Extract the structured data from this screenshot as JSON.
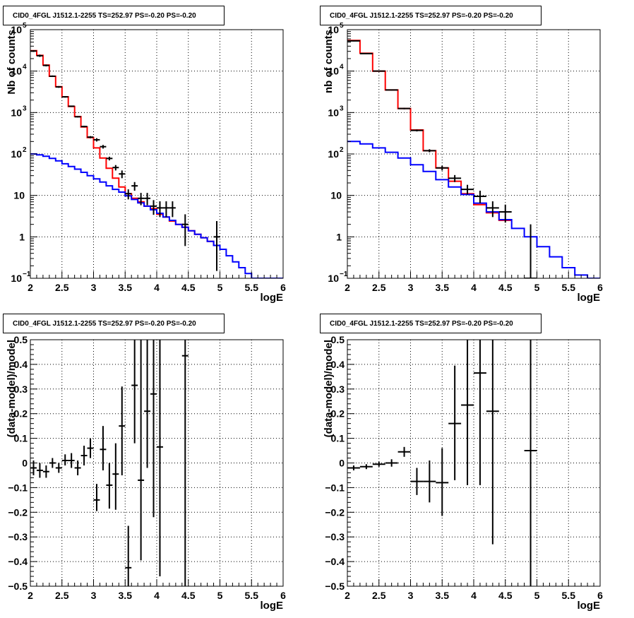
{
  "panels": [
    {
      "title": "CID0_4FGL J1512.1-2255 TS=252.97 PS=-0.20 PS=-0.20",
      "xlabel": "logE",
      "ylabel": "Nb of counts",
      "x_ticks": [
        "2",
        "2.5",
        "3",
        "3.5",
        "4",
        "4.5",
        "5",
        "5.5",
        "6"
      ],
      "y_ticks": [
        {
          "value": 0.1,
          "base": "10",
          "exp": "−1"
        },
        {
          "value": 1,
          "base": "1",
          "exp": ""
        },
        {
          "value": 10,
          "base": "10",
          "exp": ""
        },
        {
          "value": 100,
          "base": "10",
          "exp": "2"
        },
        {
          "value": 1000,
          "base": "10",
          "exp": "3"
        },
        {
          "value": 10000,
          "base": "10",
          "exp": "4"
        },
        {
          "value": 100000,
          "base": "10",
          "exp": "5"
        }
      ]
    },
    {
      "title": "CID0_4FGL J1512.1-2255 TS=252.97 PS=-0.20 PS=-0.20",
      "xlabel": "logE",
      "ylabel": "nb of counts",
      "x_ticks": [
        "2",
        "2.5",
        "3",
        "3.5",
        "4",
        "4.5",
        "5",
        "5.5",
        "6"
      ],
      "y_ticks": [
        {
          "value": 0.1,
          "base": "10",
          "exp": "−1"
        },
        {
          "value": 1,
          "base": "1",
          "exp": ""
        },
        {
          "value": 10,
          "base": "10",
          "exp": ""
        },
        {
          "value": 100,
          "base": "10",
          "exp": "2"
        },
        {
          "value": 1000,
          "base": "10",
          "exp": "3"
        },
        {
          "value": 10000,
          "base": "10",
          "exp": "4"
        },
        {
          "value": 100000,
          "base": "10",
          "exp": "5"
        }
      ]
    },
    {
      "title": "CID0_4FGL J1512.1-2255 TS=252.97 PS=-0.20 PS=-0.20",
      "xlabel": "logE",
      "ylabel": "(data-model)/model",
      "x_ticks": [
        "2",
        "2.5",
        "3",
        "3.5",
        "4",
        "4.5",
        "5",
        "5.5",
        "6"
      ],
      "y_ticks": [
        "−0.5",
        "−0.4",
        "−0.3",
        "−0.2",
        "−0.1",
        "0",
        "0.1",
        "0.2",
        "0.3",
        "0.4",
        "0.5"
      ]
    },
    {
      "title": "CID0_4FGL J1512.1-2255 TS=252.97 PS=-0.20 PS=-0.20",
      "xlabel": "logE",
      "ylabel": "(data-model)/model",
      "x_ticks": [
        "2",
        "2.5",
        "3",
        "3.5",
        "4",
        "4.5",
        "5",
        "5.5",
        "6"
      ],
      "y_ticks": [
        "−0.5",
        "−0.4",
        "−0.3",
        "−0.2",
        "−0.1",
        "0",
        "0.1",
        "0.2",
        "0.3",
        "0.4",
        "0.5"
      ]
    }
  ],
  "colors": {
    "model_total": "#ff0000",
    "model_background": "#0000ff",
    "data": "#000000",
    "grid": "#000000"
  },
  "chart_data": [
    {
      "type": "line",
      "title": "CID0_4FGL J1512.1-2255 TS=252.97 PS=-0.20 PS=-0.20",
      "xlabel": "logE",
      "ylabel": "Nb of counts",
      "xlim": [
        2,
        6
      ],
      "ylim": [
        0.1,
        100000
      ],
      "yscale": "log",
      "grid": true,
      "series": [
        {
          "kind": "step",
          "color": "red",
          "bin_edges": [
            2.0,
            2.1,
            2.2,
            2.3,
            2.4,
            2.5,
            2.6,
            2.7,
            2.8,
            2.9,
            3.0,
            3.1,
            3.2,
            3.3,
            3.4,
            3.5,
            3.6,
            3.7,
            3.8,
            3.9,
            4.0,
            4.1,
            4.2,
            4.3,
            4.4,
            4.5,
            4.6,
            4.7,
            4.8,
            4.9,
            5.0,
            5.1
          ],
          "values": [
            31000,
            24000,
            14000,
            7500,
            4200,
            2400,
            1400,
            800,
            450,
            250,
            140,
            80,
            45,
            26,
            16,
            11,
            8.5,
            7,
            5.5,
            4.8,
            3.5,
            3.0,
            2.4,
            2.0,
            1.7,
            1.4,
            1.15,
            0.95,
            0.78,
            0.62,
            0.5
          ]
        },
        {
          "kind": "step",
          "color": "blue",
          "bin_edges": [
            2.0,
            2.1,
            2.2,
            2.3,
            2.4,
            2.5,
            2.6,
            2.7,
            2.8,
            2.9,
            3.0,
            3.1,
            3.2,
            3.3,
            3.4,
            3.5,
            3.6,
            3.7,
            3.8,
            3.9,
            4.0,
            4.1,
            4.2,
            4.3,
            4.4,
            4.5,
            4.6,
            4.7,
            4.8,
            4.9,
            5.0,
            5.1,
            5.2,
            5.3,
            5.4,
            5.5,
            5.6,
            5.7,
            5.8,
            5.9,
            6.0
          ],
          "values": [
            100,
            95,
            88,
            78,
            68,
            58,
            50,
            43,
            36,
            30,
            25,
            21,
            17,
            14,
            12,
            9.8,
            8,
            6.6,
            5.5,
            4.5,
            3.7,
            3.0,
            2.5,
            2.0,
            1.7,
            1.4,
            1.15,
            0.95,
            0.78,
            0.62,
            0.5,
            0.35,
            0.25,
            0.18,
            0.13,
            0.1,
            0.1,
            0.1,
            0.1,
            0.1
          ]
        },
        {
          "kind": "points",
          "color": "black",
          "x": [
            2.05,
            2.15,
            2.25,
            2.35,
            2.45,
            2.55,
            2.65,
            2.75,
            2.85,
            2.95,
            3.05,
            3.15,
            3.25,
            3.35,
            3.45,
            3.55,
            3.65,
            3.75,
            3.85,
            3.95,
            4.05,
            4.15,
            4.25,
            4.45,
            4.95
          ],
          "y": [
            30500,
            23500,
            13700,
            7520,
            4150,
            2390,
            1420,
            790,
            460,
            255,
            220,
            150,
            78,
            47,
            33,
            11,
            17,
            8.5,
            8.5,
            5.5,
            5.0,
            5.0,
            5.0,
            2.0,
            1.0
          ],
          "y_low": [
            29000,
            22000,
            13000,
            7200,
            3950,
            2290,
            1370,
            760,
            440,
            240,
            200,
            135,
            70,
            40,
            26,
            8,
            13,
            5.8,
            5.8,
            3.4,
            3.0,
            3.0,
            3.0,
            0.6,
            0.15
          ],
          "y_high": [
            32000,
            25000,
            14400,
            7850,
            4350,
            2490,
            1470,
            820,
            480,
            270,
            240,
            165,
            86,
            54,
            40,
            14,
            21,
            11.5,
            11.5,
            7.7,
            7.2,
            7.2,
            7.2,
            3.5,
            2.4
          ]
        }
      ]
    },
    {
      "type": "line",
      "title": "CID0_4FGL J1512.1-2255 TS=252.97 PS=-0.20 PS=-0.20",
      "xlabel": "logE",
      "ylabel": "nb of counts",
      "xlim": [
        2,
        6
      ],
      "ylim": [
        0.1,
        100000
      ],
      "yscale": "log",
      "grid": true,
      "series": [
        {
          "kind": "step",
          "color": "red",
          "bin_edges": [
            2.0,
            2.2,
            2.4,
            2.6,
            2.8,
            3.0,
            3.2,
            3.4,
            3.6,
            3.8,
            4.0,
            4.2,
            4.4,
            4.6
          ],
          "values": [
            55000,
            27000,
            10000,
            3500,
            1250,
            380,
            120,
            46,
            22,
            11,
            6,
            3.8,
            2.5
          ]
        },
        {
          "kind": "step",
          "color": "blue",
          "bin_edges": [
            2.0,
            2.2,
            2.4,
            2.6,
            2.8,
            3.0,
            3.2,
            3.4,
            3.6,
            3.8,
            4.0,
            4.2,
            4.4,
            4.6,
            4.8,
            5.0,
            5.2,
            5.4,
            5.6,
            5.8,
            6.0
          ],
          "values": [
            200,
            175,
            140,
            110,
            80,
            55,
            38,
            24,
            16,
            10.5,
            6.5,
            4.0,
            2.6,
            1.6,
            1.0,
            0.58,
            0.33,
            0.18,
            0.12,
            0.1
          ]
        },
        {
          "kind": "points",
          "color": "black",
          "x": [
            2.1,
            2.3,
            2.5,
            2.7,
            2.9,
            3.1,
            3.3,
            3.5,
            3.7,
            3.9,
            4.1,
            4.3,
            4.5,
            4.9
          ],
          "y": [
            53500,
            26500,
            10000,
            3500,
            1250,
            370,
            120,
            46,
            26,
            14,
            9.5,
            5.0,
            4.0,
            0.0
          ],
          "y_low": [
            52000,
            26000,
            9800,
            3400,
            1200,
            350,
            110,
            40,
            21,
            10.5,
            6.5,
            3.0,
            2.2,
            0.1
          ],
          "y_high": [
            55000,
            27000,
            10200,
            3600,
            1300,
            390,
            130,
            52,
            31,
            18,
            13,
            7.2,
            6.0,
            2.0
          ]
        }
      ]
    },
    {
      "type": "scatter",
      "title": "CID0_4FGL J1512.1-2255 TS=252.97 PS=-0.20 PS=-0.20",
      "xlabel": "logE",
      "ylabel": "(data-model)/model",
      "xlim": [
        2,
        6
      ],
      "ylim": [
        -0.5,
        0.5
      ],
      "grid": true,
      "series": [
        {
          "kind": "points",
          "color": "black",
          "x": [
            2.05,
            2.15,
            2.25,
            2.35,
            2.45,
            2.55,
            2.65,
            2.75,
            2.85,
            2.95,
            3.05,
            3.15,
            3.25,
            3.35,
            3.45,
            3.55,
            3.65,
            3.75,
            3.85,
            3.95,
            4.05,
            4.45
          ],
          "y": [
            -0.02,
            -0.03,
            -0.035,
            0.0,
            -0.02,
            0.01,
            0.01,
            -0.02,
            0.03,
            0.06,
            -0.15,
            0.055,
            -0.09,
            -0.045,
            0.15,
            -0.425,
            0.315,
            -0.07,
            0.21,
            0.28,
            0.065,
            0.435
          ],
          "y_low": [
            -0.05,
            -0.06,
            -0.06,
            -0.02,
            -0.04,
            -0.01,
            -0.02,
            -0.05,
            -0.01,
            0.02,
            -0.195,
            -0.03,
            -0.185,
            -0.19,
            -0.05,
            -0.5,
            0.08,
            -0.395,
            -0.02,
            -0.22,
            -0.46,
            -0.5
          ],
          "y_high": [
            0.01,
            0.0,
            -0.01,
            0.02,
            0.0,
            0.035,
            0.04,
            0.01,
            0.07,
            0.1,
            -0.085,
            0.15,
            0.0,
            0.08,
            0.31,
            -0.255,
            0.5,
            0.5,
            0.5,
            0.5,
            0.5,
            0.5
          ]
        }
      ]
    },
    {
      "type": "scatter",
      "title": "CID0_4FGL J1512.1-2255 TS=252.97 PS=-0.20 PS=-0.20",
      "xlabel": "logE",
      "ylabel": "(data-model)/model",
      "xlim": [
        2,
        6
      ],
      "ylim": [
        -0.5,
        0.5
      ],
      "grid": true,
      "series": [
        {
          "kind": "points",
          "color": "black",
          "x": [
            2.1,
            2.3,
            2.5,
            2.7,
            2.9,
            3.1,
            3.3,
            3.5,
            3.7,
            3.9,
            4.1,
            4.3,
            4.9
          ],
          "y": [
            -0.02,
            -0.015,
            -0.005,
            0.0,
            0.045,
            -0.075,
            -0.075,
            -0.08,
            0.16,
            0.235,
            0.365,
            0.21,
            0.05
          ],
          "y_low": [
            -0.03,
            -0.025,
            -0.015,
            -0.015,
            0.025,
            -0.13,
            -0.16,
            -0.215,
            -0.07,
            -0.09,
            -0.09,
            -0.33,
            -0.5
          ],
          "y_high": [
            -0.01,
            -0.005,
            0.005,
            0.015,
            0.065,
            -0.02,
            0.01,
            0.06,
            0.395,
            0.5,
            0.5,
            0.5,
            0.5
          ]
        }
      ]
    }
  ]
}
